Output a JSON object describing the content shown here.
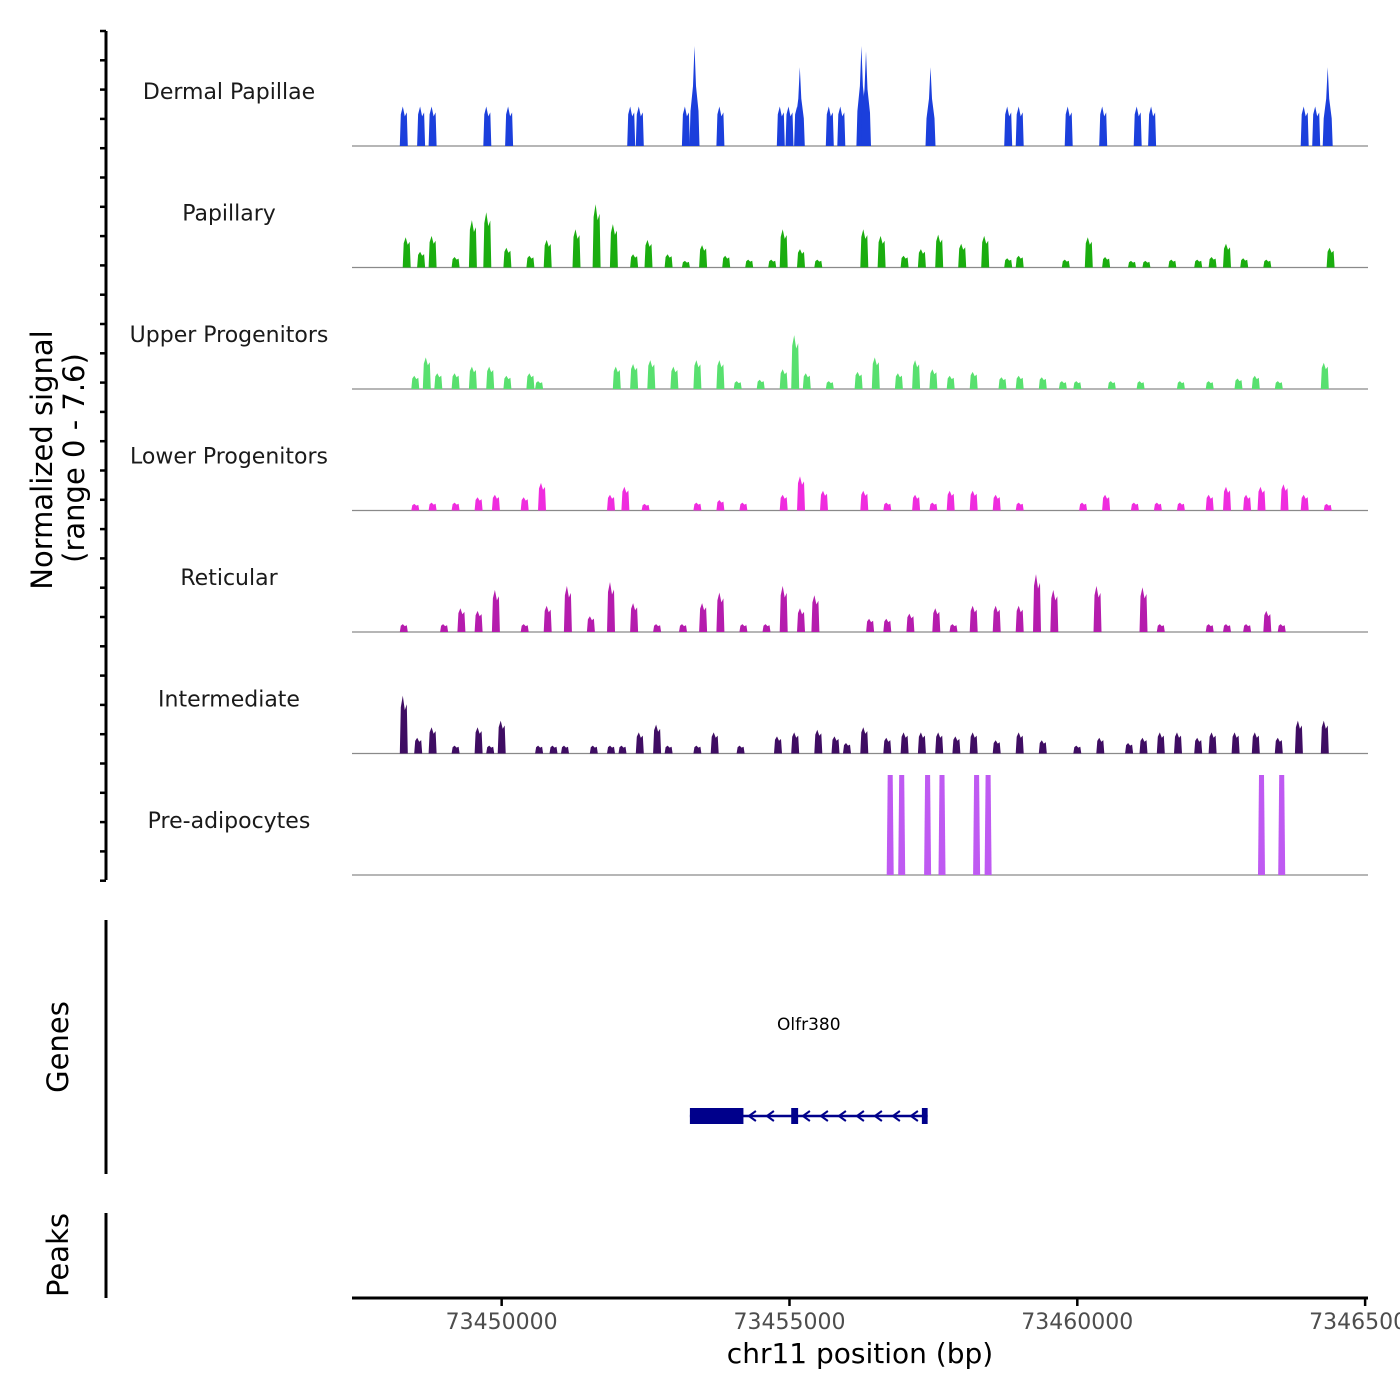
{
  "chart_data": {
    "type": "coverage",
    "title": "",
    "xlabel": "chr11 position (bp)",
    "ylabel": "Normalized signal",
    "ylabel_range": "(range 0 - 7.6)",
    "ylim": [
      0,
      7.6
    ],
    "xlim": [
      73447400,
      73465050
    ],
    "x_ticks": [
      73450000,
      73455000,
      73460000,
      73465000
    ],
    "x_tick_labels": [
      "73450000",
      "73455000",
      "73460000",
      "73465000"
    ],
    "tracks": [
      {
        "name": "Dermal Papillae",
        "color": "#1b3fdc",
        "bins": [
          [
            73448300,
            3.0
          ],
          [
            73448600,
            3.0
          ],
          [
            73448800,
            3.0
          ],
          [
            73449750,
            3.0
          ],
          [
            73450130,
            3.0
          ],
          [
            73452250,
            3.0
          ],
          [
            73452400,
            3.0
          ],
          [
            73453200,
            3.0
          ],
          [
            73453350,
            7.6
          ],
          [
            73453800,
            3.0
          ],
          [
            73454850,
            3.0
          ],
          [
            73455000,
            3.0
          ],
          [
            73455150,
            3.0
          ],
          [
            73455180,
            6.0
          ],
          [
            73455700,
            3.0
          ],
          [
            73455900,
            3.0
          ],
          [
            73456250,
            7.6
          ],
          [
            73456330,
            7.2
          ],
          [
            73457450,
            6.0
          ],
          [
            73458800,
            3.0
          ],
          [
            73459000,
            3.0
          ],
          [
            73459850,
            3.0
          ],
          [
            73460450,
            3.0
          ],
          [
            73461050,
            3.0
          ],
          [
            73461300,
            3.0
          ],
          [
            73463950,
            3.0
          ],
          [
            73464150,
            3.0
          ],
          [
            73464350,
            6.0
          ]
        ]
      },
      {
        "name": "Papillary",
        "color": "#1aad0f",
        "bins": [
          [
            73448350,
            2.3
          ],
          [
            73448600,
            1.2
          ],
          [
            73448800,
            2.4
          ],
          [
            73449200,
            0.8
          ],
          [
            73449500,
            3.6
          ],
          [
            73449750,
            4.2
          ],
          [
            73450100,
            1.5
          ],
          [
            73450500,
            0.9
          ],
          [
            73450800,
            2.1
          ],
          [
            73451300,
            2.9
          ],
          [
            73451650,
            4.8
          ],
          [
            73451950,
            3.3
          ],
          [
            73452300,
            1.0
          ],
          [
            73452550,
            2.1
          ],
          [
            73452900,
            1.0
          ],
          [
            73453200,
            0.5
          ],
          [
            73453500,
            1.7
          ],
          [
            73453900,
            0.9
          ],
          [
            73454300,
            0.6
          ],
          [
            73454700,
            0.6
          ],
          [
            73454900,
            2.9
          ],
          [
            73455200,
            1.4
          ],
          [
            73455500,
            0.6
          ],
          [
            73456300,
            2.9
          ],
          [
            73456600,
            2.4
          ],
          [
            73457000,
            0.9
          ],
          [
            73457300,
            1.4
          ],
          [
            73457600,
            2.5
          ],
          [
            73458000,
            1.8
          ],
          [
            73458400,
            2.4
          ],
          [
            73458800,
            0.7
          ],
          [
            73459000,
            0.9
          ],
          [
            73459800,
            0.6
          ],
          [
            73460200,
            2.3
          ],
          [
            73460500,
            0.8
          ],
          [
            73460950,
            0.5
          ],
          [
            73461200,
            0.5
          ],
          [
            73461650,
            0.6
          ],
          [
            73462100,
            0.6
          ],
          [
            73462350,
            0.8
          ],
          [
            73462600,
            1.8
          ],
          [
            73462900,
            0.7
          ],
          [
            73463300,
            0.6
          ],
          [
            73464400,
            1.5
          ]
        ]
      },
      {
        "name": "Upper Progenitors",
        "color": "#58e06f",
        "bins": [
          [
            73448500,
            1.0
          ],
          [
            73448700,
            2.4
          ],
          [
            73448900,
            1.2
          ],
          [
            73449200,
            1.2
          ],
          [
            73449500,
            1.7
          ],
          [
            73449800,
            1.7
          ],
          [
            73450100,
            1.0
          ],
          [
            73450500,
            1.2
          ],
          [
            73450650,
            0.6
          ],
          [
            73452000,
            1.7
          ],
          [
            73452300,
            1.9
          ],
          [
            73452600,
            2.2
          ],
          [
            73453000,
            1.7
          ],
          [
            73453400,
            2.2
          ],
          [
            73453800,
            2.2
          ],
          [
            73454100,
            0.6
          ],
          [
            73454500,
            0.7
          ],
          [
            73454900,
            1.5
          ],
          [
            73455100,
            4.1
          ],
          [
            73455300,
            1.2
          ],
          [
            73455700,
            0.6
          ],
          [
            73456200,
            1.3
          ],
          [
            73456500,
            2.4
          ],
          [
            73456900,
            1.2
          ],
          [
            73457200,
            2.2
          ],
          [
            73457500,
            1.5
          ],
          [
            73457800,
            1.0
          ],
          [
            73458200,
            1.3
          ],
          [
            73458700,
            0.9
          ],
          [
            73459000,
            1.0
          ],
          [
            73459400,
            0.9
          ],
          [
            73459750,
            0.6
          ],
          [
            73460000,
            0.6
          ],
          [
            73460600,
            0.6
          ],
          [
            73461100,
            0.6
          ],
          [
            73461800,
            0.6
          ],
          [
            73462300,
            0.6
          ],
          [
            73462800,
            0.8
          ],
          [
            73463100,
            1.0
          ],
          [
            73463500,
            0.6
          ],
          [
            73464300,
            2.0
          ]
        ]
      },
      {
        "name": "Lower Progenitors",
        "color": "#ef2cde",
        "bins": [
          [
            73448500,
            0.5
          ],
          [
            73448800,
            0.6
          ],
          [
            73449200,
            0.6
          ],
          [
            73449600,
            1.0
          ],
          [
            73449900,
            1.2
          ],
          [
            73450400,
            1.0
          ],
          [
            73450700,
            2.1
          ],
          [
            73451900,
            1.2
          ],
          [
            73452150,
            1.8
          ],
          [
            73452500,
            0.5
          ],
          [
            73453400,
            0.6
          ],
          [
            73453800,
            0.8
          ],
          [
            73454200,
            0.6
          ],
          [
            73454900,
            1.2
          ],
          [
            73455200,
            2.6
          ],
          [
            73455600,
            1.5
          ],
          [
            73456300,
            1.5
          ],
          [
            73456700,
            0.6
          ],
          [
            73457200,
            1.2
          ],
          [
            73457500,
            0.6
          ],
          [
            73457800,
            1.5
          ],
          [
            73458200,
            1.5
          ],
          [
            73458600,
            1.2
          ],
          [
            73459000,
            0.6
          ],
          [
            73460100,
            0.6
          ],
          [
            73460500,
            1.2
          ],
          [
            73461000,
            0.6
          ],
          [
            73461400,
            0.6
          ],
          [
            73461800,
            0.6
          ],
          [
            73462300,
            1.2
          ],
          [
            73462600,
            1.8
          ],
          [
            73462950,
            1.2
          ],
          [
            73463200,
            1.8
          ],
          [
            73463600,
            2.0
          ],
          [
            73463950,
            1.2
          ],
          [
            73464350,
            0.5
          ]
        ]
      },
      {
        "name": "Reticular",
        "color": "#b51cad",
        "bins": [
          [
            73448300,
            0.6
          ],
          [
            73449000,
            0.6
          ],
          [
            73449300,
            1.8
          ],
          [
            73449600,
            1.6
          ],
          [
            73449900,
            3.2
          ],
          [
            73450400,
            0.6
          ],
          [
            73450800,
            2.0
          ],
          [
            73451150,
            3.5
          ],
          [
            73451550,
            1.2
          ],
          [
            73451900,
            3.8
          ],
          [
            73452300,
            2.2
          ],
          [
            73452700,
            0.6
          ],
          [
            73453150,
            0.6
          ],
          [
            73453500,
            2.2
          ],
          [
            73453800,
            3.0
          ],
          [
            73454200,
            0.6
          ],
          [
            73454600,
            0.6
          ],
          [
            73454900,
            3.5
          ],
          [
            73455200,
            1.8
          ],
          [
            73455450,
            2.8
          ],
          [
            73456400,
            1.0
          ],
          [
            73456700,
            1.0
          ],
          [
            73457100,
            1.4
          ],
          [
            73457550,
            1.8
          ],
          [
            73457850,
            0.6
          ],
          [
            73458200,
            2.0
          ],
          [
            73458600,
            2.0
          ],
          [
            73459000,
            2.0
          ],
          [
            73459300,
            4.4
          ],
          [
            73459600,
            3.2
          ],
          [
            73460350,
            3.5
          ],
          [
            73461150,
            3.4
          ],
          [
            73461450,
            0.6
          ],
          [
            73462300,
            0.6
          ],
          [
            73462600,
            0.6
          ],
          [
            73462950,
            0.6
          ],
          [
            73463300,
            1.6
          ],
          [
            73463550,
            0.6
          ]
        ]
      },
      {
        "name": "Intermediate",
        "color": "#3f0d63",
        "bins": [
          [
            73448300,
            4.4
          ],
          [
            73448550,
            1.2
          ],
          [
            73448800,
            2.0
          ],
          [
            73449200,
            0.6
          ],
          [
            73449600,
            2.0
          ],
          [
            73449800,
            0.6
          ],
          [
            73450000,
            2.5
          ],
          [
            73450650,
            0.6
          ],
          [
            73450900,
            0.6
          ],
          [
            73451100,
            0.6
          ],
          [
            73451600,
            0.6
          ],
          [
            73451900,
            0.6
          ],
          [
            73452100,
            0.6
          ],
          [
            73452400,
            1.6
          ],
          [
            73452700,
            2.2
          ],
          [
            73452900,
            0.6
          ],
          [
            73453400,
            0.6
          ],
          [
            73453700,
            1.6
          ],
          [
            73454150,
            0.6
          ],
          [
            73454800,
            1.3
          ],
          [
            73455100,
            1.6
          ],
          [
            73455500,
            1.8
          ],
          [
            73455800,
            1.3
          ],
          [
            73456000,
            0.8
          ],
          [
            73456300,
            2.0
          ],
          [
            73456700,
            1.2
          ],
          [
            73457000,
            1.6
          ],
          [
            73457300,
            1.6
          ],
          [
            73457600,
            1.6
          ],
          [
            73457900,
            1.3
          ],
          [
            73458200,
            1.6
          ],
          [
            73458600,
            1.0
          ],
          [
            73459000,
            1.6
          ],
          [
            73459400,
            1.0
          ],
          [
            73460000,
            0.6
          ],
          [
            73460400,
            1.2
          ],
          [
            73460900,
            0.8
          ],
          [
            73461150,
            1.2
          ],
          [
            73461450,
            1.6
          ],
          [
            73461750,
            1.6
          ],
          [
            73462100,
            1.2
          ],
          [
            73462350,
            1.6
          ],
          [
            73462750,
            1.6
          ],
          [
            73463100,
            1.6
          ],
          [
            73463500,
            1.2
          ],
          [
            73463850,
            2.5
          ],
          [
            73464300,
            2.5
          ]
        ]
      },
      {
        "name": "Pre-adipocytes",
        "color": "#bf5af2",
        "bins": [
          [
            73456750,
            7.6
          ],
          [
            73456950,
            7.6
          ],
          [
            73457400,
            7.6
          ],
          [
            73457650,
            7.6
          ],
          [
            73458250,
            7.6
          ],
          [
            73458450,
            7.6
          ],
          [
            73463200,
            7.6
          ],
          [
            73463550,
            7.6
          ]
        ]
      }
    ],
    "genes": {
      "label": "Genes",
      "items": [
        {
          "name": "Olfr380",
          "strand": "-",
          "start": 73453270,
          "end": 73457400,
          "exons": [
            [
              73453270,
              73454200
            ],
            [
              73455030,
              73455150
            ],
            [
              73457300,
              73457400
            ]
          ]
        }
      ]
    },
    "peaks": {
      "label": "Peaks",
      "items": []
    }
  }
}
